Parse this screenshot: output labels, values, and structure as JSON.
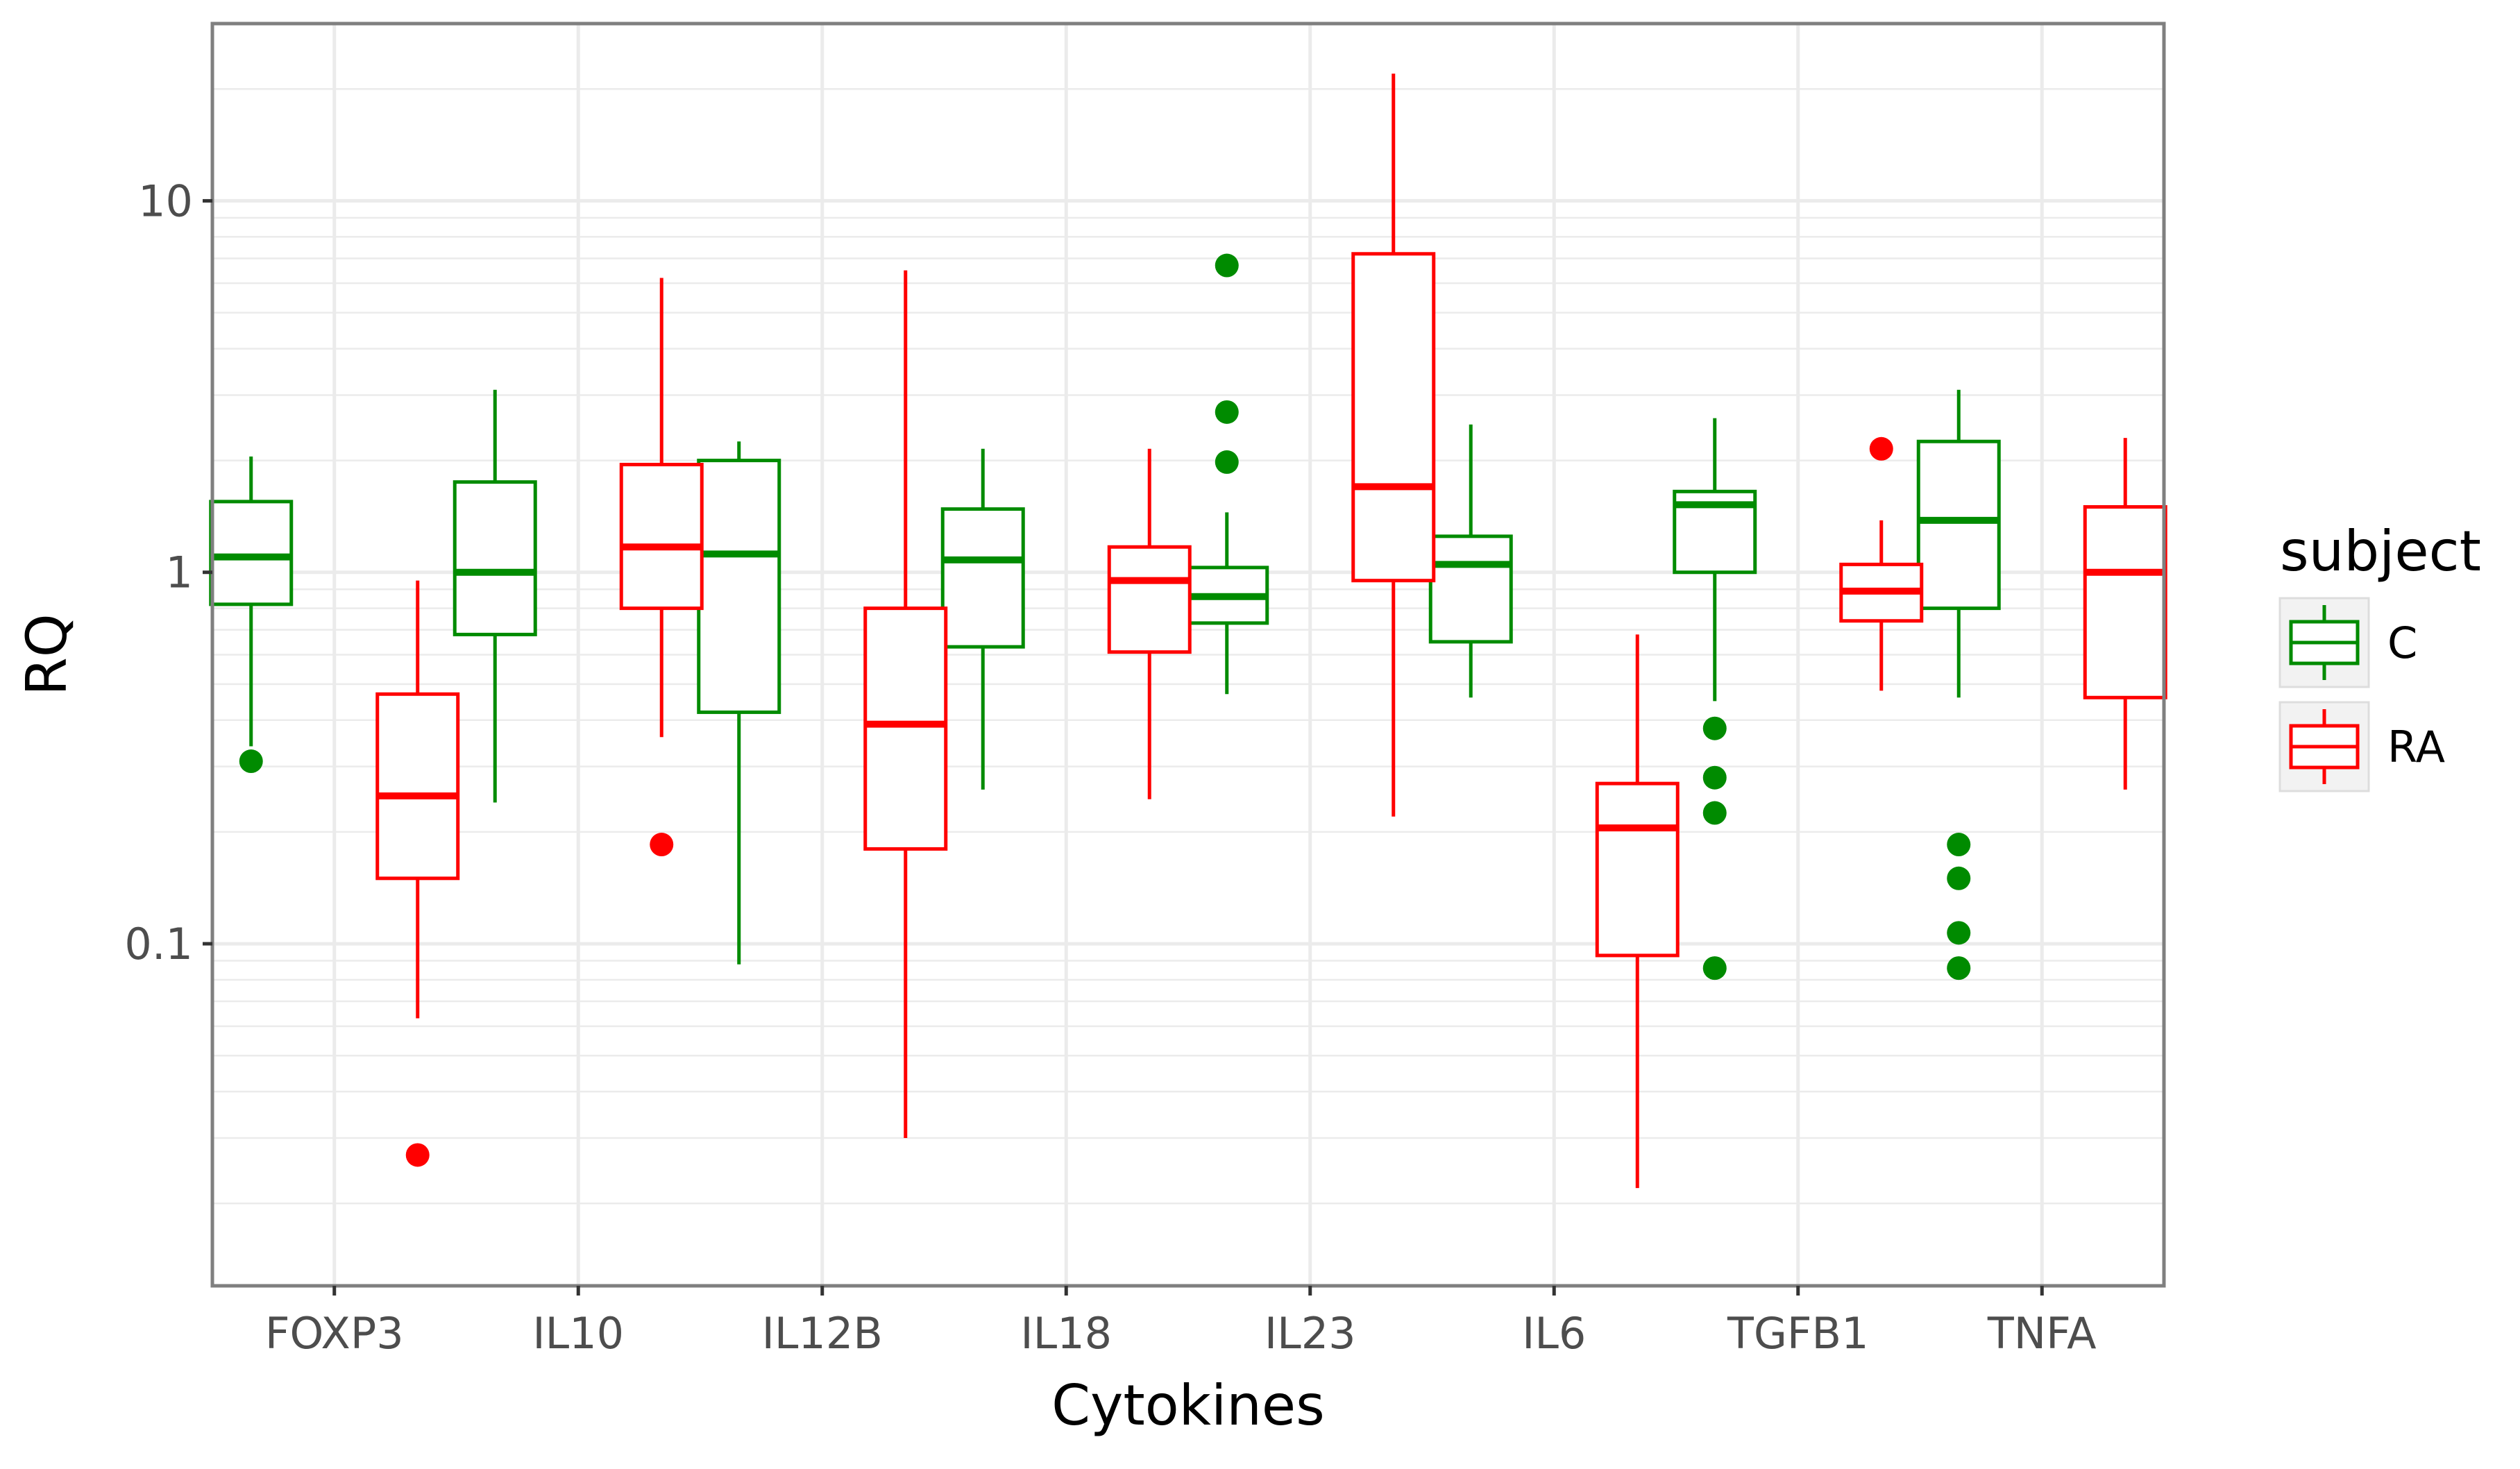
{
  "chart_data": {
    "type": "boxplot",
    "xlabel": "Cytokines",
    "ylabel": "RQ",
    "yscale": "log10",
    "ylim": [
      0.012,
      30
    ],
    "yticks": [
      {
        "value": 0.1,
        "label": "0.1"
      },
      {
        "value": 1,
        "label": "1"
      },
      {
        "value": 10,
        "label": "10"
      }
    ],
    "categories": [
      "FOXP3",
      "IL10",
      "IL12B",
      "IL18",
      "IL23",
      "IL6",
      "TGFB1",
      "TNFA"
    ],
    "legend": {
      "title": "subject",
      "placement": "right",
      "entries": [
        {
          "name": "C",
          "color": "#008b00"
        },
        {
          "name": "RA",
          "color": "#ff0000"
        }
      ]
    },
    "series": [
      {
        "name": "C",
        "color": "#008b00",
        "boxes": [
          {
            "category": "FOXP3",
            "whisker_low": 0.34,
            "q1": 0.82,
            "median": 1.1,
            "q3": 1.55,
            "whisker_high": 2.05,
            "outliers": [
              0.31
            ]
          },
          {
            "category": "IL10",
            "whisker_low": 0.24,
            "q1": 0.68,
            "median": 1.0,
            "q3": 1.75,
            "whisker_high": 3.1,
            "outliers": []
          },
          {
            "category": "IL12B",
            "whisker_low": 0.088,
            "q1": 0.42,
            "median": 1.12,
            "q3": 2.0,
            "whisker_high": 2.25,
            "outliers": []
          },
          {
            "category": "IL18",
            "whisker_low": 0.26,
            "q1": 0.63,
            "median": 1.08,
            "q3": 1.48,
            "whisker_high": 2.15,
            "outliers": []
          },
          {
            "category": "IL23",
            "whisker_low": 0.47,
            "q1": 0.73,
            "median": 0.86,
            "q3": 1.03,
            "whisker_high": 1.45,
            "outliers": [
              6.7,
              2.7,
              1.98
            ]
          },
          {
            "category": "IL6",
            "whisker_low": 0.46,
            "q1": 0.65,
            "median": 1.05,
            "q3": 1.25,
            "whisker_high": 2.5,
            "outliers": []
          },
          {
            "category": "TGFB1",
            "whisker_low": 0.45,
            "q1": 1.0,
            "median": 1.52,
            "q3": 1.65,
            "whisker_high": 2.6,
            "outliers": [
              0.38,
              0.28,
              0.225,
              0.086
            ]
          },
          {
            "category": "TNFA",
            "whisker_low": 0.46,
            "q1": 0.8,
            "median": 1.38,
            "q3": 2.25,
            "whisker_high": 3.1,
            "outliers": [
              0.185,
              0.15,
              0.107,
              0.086
            ]
          }
        ]
      },
      {
        "name": "RA",
        "color": "#ff0000",
        "boxes": [
          {
            "category": "FOXP3",
            "whisker_low": 0.063,
            "q1": 0.15,
            "median": 0.25,
            "q3": 0.47,
            "whisker_high": 0.95,
            "outliers": [
              0.027
            ]
          },
          {
            "category": "IL10",
            "whisker_low": 0.36,
            "q1": 0.8,
            "median": 1.17,
            "q3": 1.95,
            "whisker_high": 6.2,
            "outliers": [
              0.185
            ]
          },
          {
            "category": "IL12B",
            "whisker_low": 0.03,
            "q1": 0.18,
            "median": 0.39,
            "q3": 0.8,
            "whisker_high": 6.5,
            "outliers": []
          },
          {
            "category": "IL18",
            "whisker_low": 0.245,
            "q1": 0.61,
            "median": 0.95,
            "q3": 1.17,
            "whisker_high": 2.15,
            "outliers": []
          },
          {
            "category": "IL23",
            "whisker_low": 0.22,
            "q1": 0.95,
            "median": 1.7,
            "q3": 7.2,
            "whisker_high": 22,
            "outliers": []
          },
          {
            "category": "IL6",
            "whisker_low": 0.022,
            "q1": 0.093,
            "median": 0.205,
            "q3": 0.27,
            "whisker_high": 0.68,
            "outliers": []
          },
          {
            "category": "TGFB1",
            "whisker_low": 0.48,
            "q1": 0.74,
            "median": 0.89,
            "q3": 1.05,
            "whisker_high": 1.38,
            "outliers": [
              2.15
            ]
          },
          {
            "category": "TNFA",
            "whisker_low": 0.26,
            "q1": 0.46,
            "median": 1.0,
            "q3": 1.5,
            "whisker_high": 2.3,
            "outliers": []
          }
        ]
      }
    ]
  }
}
